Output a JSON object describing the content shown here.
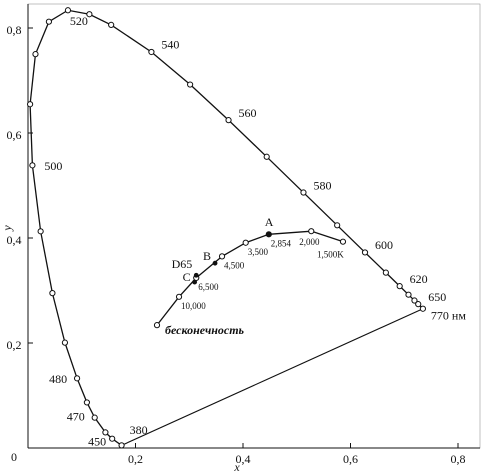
{
  "chart_data": {
    "type": "line",
    "xlabel": "x",
    "ylabel": "y",
    "xlim": [
      0,
      0.8
    ],
    "ylim": [
      0,
      0.8
    ],
    "xticks": [
      {
        "value": 0.2,
        "label": "0,2"
      },
      {
        "value": 0.4,
        "label": "0,4"
      },
      {
        "value": 0.6,
        "label": "0,6"
      },
      {
        "value": 0.8,
        "label": "0,8"
      }
    ],
    "yticks": [
      0,
      {
        "value": 0.2,
        "label": "0,2"
      },
      {
        "value": 0.4,
        "label": "0,4"
      },
      {
        "value": 0.6,
        "label": "0,6"
      },
      {
        "value": 0.8,
        "label": "0,8"
      }
    ],
    "series": [
      {
        "x": [
          0.1741,
          0.1566,
          0.144,
          0.1241,
          0.1096,
          0.0913,
          0.0687,
          0.0454,
          0.0235,
          0.0082,
          0.0039,
          0.0139,
          0.0389,
          0.0743,
          0.1142,
          0.1547,
          0.2296,
          0.3016,
          0.3731,
          0.4441,
          0.5125,
          0.5752,
          0.627,
          0.6658,
          0.6915,
          0.7079,
          0.719,
          0.726,
          0.7347
        ],
        "values": [
          0.005,
          0.0177,
          0.0297,
          0.0578,
          0.0868,
          0.1327,
          0.2007,
          0.295,
          0.4127,
          0.5384,
          0.6548,
          0.7502,
          0.812,
          0.8338,
          0.8262,
          0.8059,
          0.7543,
          0.6923,
          0.6245,
          0.5547,
          0.4866,
          0.4242,
          0.3725,
          0.334,
          0.3083,
          0.292,
          0.2809,
          0.274,
          0.2653
        ],
        "point_labels": [
          "380",
          "450",
          null,
          "470",
          null,
          "480",
          null,
          null,
          null,
          "500",
          null,
          null,
          null,
          "520",
          null,
          null,
          "540",
          null,
          "560",
          null,
          "580",
          null,
          "600",
          null,
          "620",
          null,
          null,
          "650",
          "770 нм"
        ],
        "color": "#111111"
      },
      {
        "x": [
          0.24,
          0.281,
          0.313,
          0.361,
          0.405,
          0.448,
          0.527,
          0.586
        ],
        "values": [
          0.234,
          0.288,
          0.324,
          0.365,
          0.391,
          0.407,
          0.413,
          0.393
        ],
        "point_labels": [
          "бесконечность",
          "10,000",
          "6,500",
          "4,500",
          "3,500",
          "2,854",
          "2,000",
          "1,500K"
        ],
        "color": "#111111"
      }
    ],
    "illuminants": {
      "names": [
        "A",
        "B",
        "C",
        "D65"
      ],
      "x": [
        0.448,
        0.348,
        0.31,
        0.313
      ],
      "values": [
        0.407,
        0.352,
        0.316,
        0.329
      ]
    }
  }
}
